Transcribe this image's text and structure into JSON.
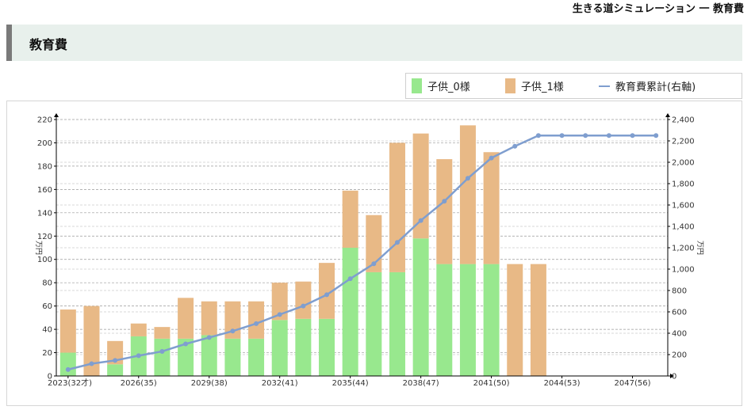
{
  "header": {
    "title": "生きる道シミュレーション 一 教育費"
  },
  "section": {
    "title": "教育費"
  },
  "legend": {
    "items": [
      {
        "label": "子供_0様",
        "color": "#98e88e",
        "kind": "bar"
      },
      {
        "label": "子供_1様",
        "color": "#e8b986",
        "kind": "bar"
      },
      {
        "label": "教育費累計(右軸)",
        "color": "#7f9ecf",
        "kind": "line"
      }
    ]
  },
  "chart_data": {
    "type": "bar",
    "stacked": true,
    "categories": [
      "2023(32才)",
      "2024(33)",
      "2025(34)",
      "2026(35)",
      "2027(36)",
      "2028(37)",
      "2029(38)",
      "2030(39)",
      "2031(40)",
      "2032(41)",
      "2033(42)",
      "2034(43)",
      "2035(44)",
      "2036(45)",
      "2037(46)",
      "2038(47)",
      "2039(48)",
      "2040(49)",
      "2041(50)",
      "2042(51)",
      "2043(52)",
      "2044(53)",
      "2045(54)",
      "2046(55)",
      "2047(56)",
      "2048(57)"
    ],
    "x_tick_labels": [
      "2023(32才)",
      "2026(35)",
      "2029(38)",
      "2032(41)",
      "2035(44)",
      "2038(47)",
      "2041(50)",
      "2044(53)",
      "2047(56)"
    ],
    "series": [
      {
        "name": "子供_0様",
        "axis": "left",
        "color": "#98e88e",
        "values": [
          20,
          0,
          10,
          34,
          32,
          32,
          35,
          32,
          32,
          48,
          49,
          49,
          110,
          89,
          89,
          118,
          96,
          96,
          96,
          0,
          0,
          0,
          0,
          0,
          0,
          0
        ]
      },
      {
        "name": "子供_1様",
        "axis": "left",
        "color": "#e8b986",
        "values": [
          37,
          60,
          20,
          11,
          10,
          35,
          29,
          32,
          32,
          32,
          32,
          48,
          49,
          49,
          111,
          90,
          90,
          119,
          96,
          96,
          96,
          0,
          0,
          0,
          0,
          0
        ]
      },
      {
        "name": "教育費累計(右軸)",
        "type": "line",
        "axis": "right",
        "color": "#7f9ecf",
        "values": [
          60,
          115,
          145,
          190,
          230,
          300,
          360,
          420,
          490,
          575,
          655,
          760,
          910,
          1050,
          1250,
          1455,
          1635,
          1850,
          2040,
          2150,
          2250,
          2250,
          2250,
          2250,
          2250,
          2250
        ]
      }
    ],
    "y_left": {
      "label": "万円",
      "min": 0,
      "max": 220,
      "ticks": [
        0,
        20,
        40,
        60,
        80,
        100,
        120,
        140,
        160,
        180,
        200,
        220
      ]
    },
    "y_right": {
      "label": "万円",
      "min": 0,
      "max": 2400,
      "ticks": [
        0,
        200,
        400,
        600,
        800,
        1000,
        1200,
        1400,
        1600,
        1800,
        2000,
        2200,
        2400
      ],
      "tick_labels": [
        "0",
        "200",
        "400",
        "600",
        "800",
        "1,000",
        "1,200",
        "1,400",
        "1,600",
        "1,800",
        "2,000",
        "2,200",
        "2,400"
      ]
    },
    "grid": true,
    "legend_position": "top-right"
  }
}
